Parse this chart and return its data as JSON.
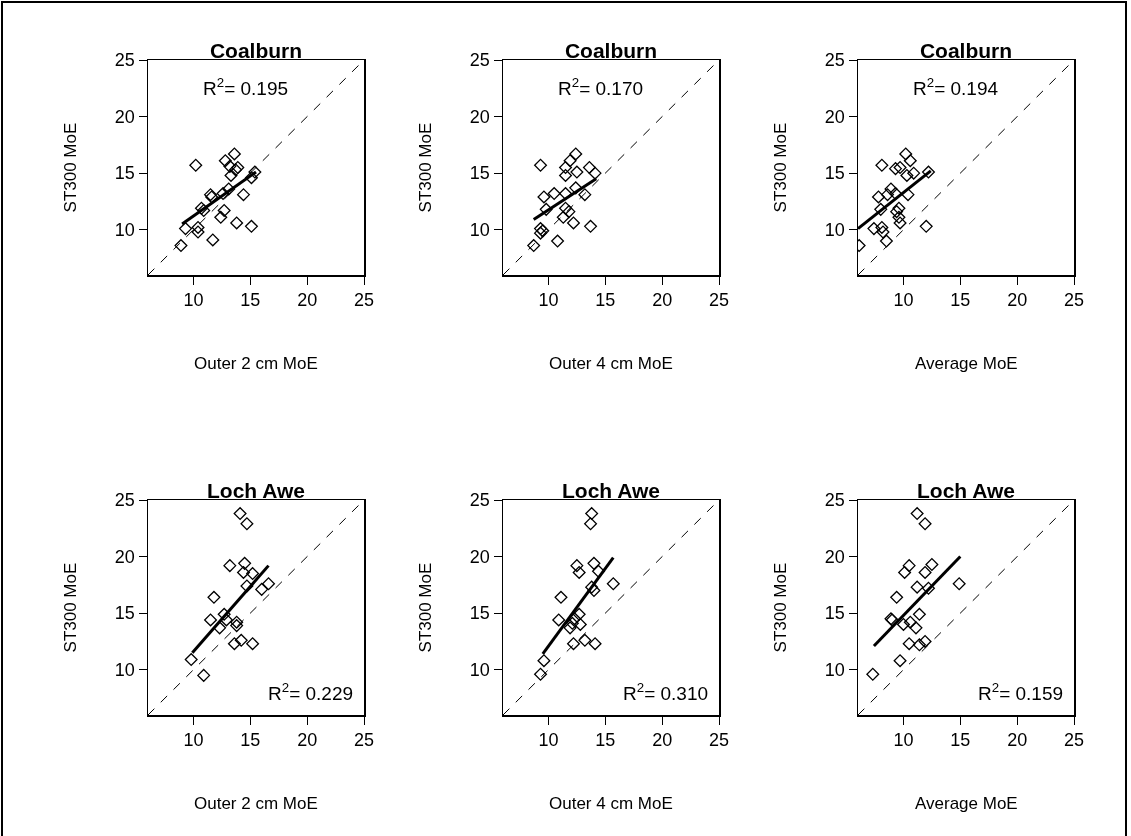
{
  "chart_data": [
    {
      "type": "scatter",
      "title": "Coalburn",
      "xlabel": "Outer 2 cm MoE",
      "ylabel": "ST300 MoE",
      "xlim": [
        6,
        25
      ],
      "ylim": [
        6,
        25
      ],
      "xticks": [
        10,
        15,
        20,
        25
      ],
      "yticks": [
        10,
        15,
        20,
        25
      ],
      "grid": false,
      "legend": false,
      "annotations": [
        "R$^{2}$= 0.195"
      ],
      "series": [
        {
          "marker": "diamond",
          "color": "#000000",
          "x": [
            10.2,
            13.6,
            12.8,
            13.2,
            13.9,
            13.7,
            13.3,
            15.4,
            15.1,
            13.1,
            11.5,
            11.6,
            12.6,
            14.4,
            10.7,
            10.9,
            12.7,
            12.4,
            9.3,
            10.4,
            10.4,
            13.8,
            15.1,
            11.7,
            8.9
          ],
          "values": [
            15.7,
            16.7,
            16.1,
            15.6,
            15.5,
            15.3,
            14.8,
            15.1,
            14.6,
            13.6,
            13.1,
            12.9,
            13.2,
            13.1,
            11.9,
            11.7,
            11.7,
            11.1,
            10.1,
            10.2,
            9.8,
            10.6,
            10.3,
            9.1,
            8.6
          ]
        },
        {
          "type": "line",
          "line_style": "solid",
          "color": "#000000",
          "x": [
            9.0,
            15.5
          ],
          "values": [
            10.5,
            15.1
          ]
        },
        {
          "type": "line",
          "line_style": "dashed",
          "color": "#000000",
          "x": [
            6,
            25
          ],
          "values": [
            6,
            25
          ]
        }
      ]
    },
    {
      "type": "scatter",
      "title": "Coalburn",
      "xlabel": "Outer 4 cm MoE",
      "ylabel": "ST300 MoE",
      "xlim": [
        6,
        25
      ],
      "ylim": [
        6,
        25
      ],
      "xticks": [
        10,
        15,
        20,
        25
      ],
      "yticks": [
        10,
        15,
        20,
        25
      ],
      "grid": false,
      "legend": false,
      "annotations": [
        "R$^{2}$= 0.170"
      ],
      "series": [
        {
          "marker": "diamond",
          "color": "#000000",
          "x": [
            9.3,
            12.4,
            11.9,
            11.5,
            12.5,
            11.5,
            13.6,
            14.1,
            12.4,
            9.6,
            10.5,
            11.5,
            13.2,
            9.8,
            11.5,
            11.8,
            11.3,
            9.3,
            9.5,
            9.3,
            12.2,
            13.7,
            10.8,
            8.7
          ],
          "values": [
            15.7,
            16.7,
            16.1,
            15.5,
            15.1,
            14.8,
            15.5,
            15.0,
            13.7,
            12.9,
            13.2,
            13.2,
            13.1,
            11.8,
            11.9,
            11.6,
            11.1,
            10.1,
            9.9,
            9.7,
            10.6,
            10.3,
            9.0,
            8.6
          ]
        },
        {
          "type": "line",
          "line_style": "solid",
          "color": "#000000",
          "x": [
            8.7,
            14.2
          ],
          "values": [
            10.9,
            14.5
          ]
        },
        {
          "type": "line",
          "line_style": "dashed",
          "color": "#000000",
          "x": [
            6,
            25
          ],
          "values": [
            6,
            25
          ]
        }
      ]
    },
    {
      "type": "scatter",
      "title": "Coalburn",
      "xlabel": "Average MoE",
      "ylabel": "ST300 MoE",
      "xlim": [
        6,
        25
      ],
      "ylim": [
        6,
        25
      ],
      "xticks": [
        10,
        15,
        20,
        25
      ],
      "yticks": [
        10,
        15,
        20,
        25
      ],
      "grid": false,
      "legend": false,
      "annotations": [
        "R$^{2}$= 0.194"
      ],
      "series": [
        {
          "marker": "diamond",
          "color": "#000000",
          "x": [
            6.1,
            8.1,
            10.2,
            10.6,
            9.7,
            9.3,
            10.3,
            10.9,
            12.2,
            8.9,
            7.8,
            8.6,
            9.3,
            10.4,
            8.0,
            9.6,
            9.4,
            9.6,
            9.7,
            7.4,
            8.1,
            8.2,
            8.5,
            12.0
          ],
          "values": [
            8.6,
            15.7,
            16.7,
            16.1,
            15.5,
            15.4,
            14.8,
            15.0,
            15.1,
            13.6,
            12.9,
            13.1,
            13.2,
            13.1,
            11.8,
            11.9,
            11.6,
            11.1,
            10.6,
            10.1,
            10.2,
            9.8,
            9.0,
            10.3
          ]
        },
        {
          "type": "line",
          "line_style": "solid",
          "color": "#000000",
          "x": [
            6.0,
            12.4
          ],
          "values": [
            10.1,
            15.2
          ]
        },
        {
          "type": "line",
          "line_style": "dashed",
          "color": "#000000",
          "x": [
            6,
            25
          ],
          "values": [
            6,
            25
          ]
        }
      ]
    },
    {
      "type": "scatter",
      "title": "Loch Awe",
      "xlabel": "Outer 2 cm MoE",
      "ylabel": "ST300 MoE",
      "xlim": [
        6,
        25
      ],
      "ylim": [
        6,
        25
      ],
      "xticks": [
        10,
        15,
        20,
        25
      ],
      "yticks": [
        10,
        15,
        20,
        25
      ],
      "grid": false,
      "legend": false,
      "annotations": [
        "R$^{2}$= 0.229"
      ],
      "series": [
        {
          "marker": "diamond",
          "color": "#000000",
          "x": [
            14.1,
            14.7,
            13.2,
            14.5,
            14.4,
            15.2,
            14.7,
            16.0,
            16.6,
            11.8,
            12.7,
            11.5,
            12.9,
            13.8,
            13.8,
            12.3,
            14.2,
            13.6,
            15.2,
            9.8,
            10.9
          ],
          "values": [
            23.8,
            22.9,
            19.2,
            19.4,
            18.6,
            18.5,
            17.4,
            17.1,
            17.6,
            16.4,
            14.9,
            14.4,
            14.4,
            14.2,
            13.9,
            13.7,
            12.6,
            12.3,
            12.3,
            10.9,
            9.5
          ]
        },
        {
          "type": "line",
          "line_style": "solid",
          "color": "#000000",
          "x": [
            9.9,
            16.6
          ],
          "values": [
            11.5,
            19.2
          ]
        },
        {
          "type": "line",
          "line_style": "dashed",
          "color": "#000000",
          "x": [
            6,
            25
          ],
          "values": [
            6,
            25
          ]
        }
      ]
    },
    {
      "type": "scatter",
      "title": "Loch Awe",
      "xlabel": "Outer 4 cm MoE",
      "ylabel": "ST300 MoE",
      "xlim": [
        6,
        25
      ],
      "ylim": [
        6,
        25
      ],
      "xticks": [
        10,
        15,
        20,
        25
      ],
      "yticks": [
        10,
        15,
        20,
        25
      ],
      "grid": false,
      "legend": false,
      "annotations": [
        "R$^{2}$= 0.310"
      ],
      "series": [
        {
          "marker": "diamond",
          "color": "#000000",
          "x": [
            13.8,
            13.7,
            12.5,
            14.0,
            12.7,
            14.4,
            13.8,
            14.0,
            15.7,
            11.1,
            12.7,
            10.9,
            12.3,
            12.1,
            12.8,
            11.9,
            13.2,
            12.2,
            14.1,
            9.6,
            9.3
          ],
          "values": [
            23.8,
            22.9,
            19.2,
            19.4,
            18.6,
            18.7,
            17.3,
            17.0,
            17.6,
            16.4,
            14.9,
            14.4,
            14.5,
            14.1,
            14.0,
            13.7,
            12.6,
            12.3,
            12.3,
            10.8,
            9.6
          ]
        },
        {
          "type": "line",
          "line_style": "solid",
          "color": "#000000",
          "x": [
            9.5,
            15.7
          ],
          "values": [
            11.4,
            19.9
          ]
        },
        {
          "type": "line",
          "line_style": "dashed",
          "color": "#000000",
          "x": [
            6,
            25
          ],
          "values": [
            6,
            25
          ]
        }
      ]
    },
    {
      "type": "scatter",
      "title": "Loch Awe",
      "xlabel": "Average MoE",
      "ylabel": "ST300 MoE",
      "xlim": [
        6,
        25
      ],
      "ylim": [
        6,
        25
      ],
      "xticks": [
        10,
        15,
        20,
        25
      ],
      "yticks": [
        10,
        15,
        20,
        25
      ],
      "grid": false,
      "legend": false,
      "annotations": [
        "R$^{2}$= 0.159"
      ],
      "series": [
        {
          "marker": "diamond",
          "color": "#000000",
          "x": [
            11.2,
            11.9,
            10.5,
            12.5,
            10.1,
            11.9,
            11.2,
            12.2,
            14.9,
            9.4,
            11.4,
            8.9,
            9.0,
            10.0,
            10.6,
            11.1,
            10.5,
            11.4,
            11.9,
            9.7,
            7.3
          ],
          "values": [
            23.8,
            22.9,
            19.2,
            19.3,
            18.6,
            18.6,
            17.3,
            17.2,
            17.6,
            16.4,
            14.9,
            14.5,
            14.4,
            14.0,
            14.2,
            13.7,
            12.3,
            12.2,
            12.5,
            10.8,
            9.6
          ]
        },
        {
          "type": "line",
          "line_style": "solid",
          "color": "#000000",
          "x": [
            7.4,
            15.0
          ],
          "values": [
            12.1,
            20.0
          ]
        },
        {
          "type": "line",
          "line_style": "dashed",
          "color": "#000000",
          "x": [
            6,
            25
          ],
          "values": [
            6,
            25
          ]
        }
      ]
    }
  ]
}
